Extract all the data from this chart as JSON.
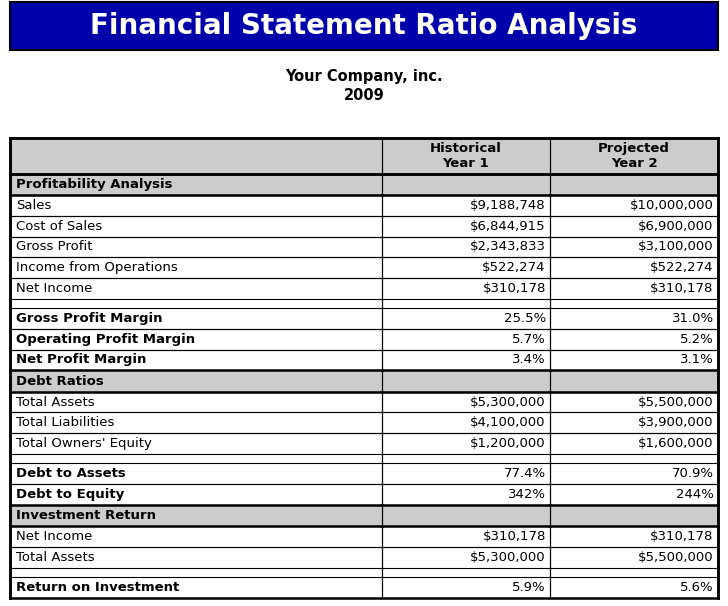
{
  "title": "Financial Statement Ratio Analysis",
  "subtitle1": "Your Company, inc.",
  "subtitle2": "2009",
  "title_bg": "#0000AA",
  "title_color": "#FFFFFF",
  "header_bg": "#CCCCCC",
  "section_bg": "#CCCCCC",
  "col_headers": [
    "",
    "Historical\nYear 1",
    "Projected\nYear 2"
  ],
  "rows": [
    {
      "type": "section",
      "label": "Profitability Analysis",
      "v1": "",
      "v2": ""
    },
    {
      "type": "data",
      "label": "Sales",
      "v1": "$9,188,748",
      "v2": "$10,000,000"
    },
    {
      "type": "data",
      "label": "Cost of Sales",
      "v1": "$6,844,915",
      "v2": "$6,900,000"
    },
    {
      "type": "data",
      "label": "Gross Profit",
      "v1": "$2,343,833",
      "v2": "$3,100,000"
    },
    {
      "type": "data",
      "label": "Income from Operations",
      "v1": "$522,274",
      "v2": "$522,274"
    },
    {
      "type": "data",
      "label": "Net Income",
      "v1": "$310,178",
      "v2": "$310,178"
    },
    {
      "type": "empty",
      "label": "",
      "v1": "",
      "v2": ""
    },
    {
      "type": "bold",
      "label": "Gross Profit Margin",
      "v1": "25.5%",
      "v2": "31.0%"
    },
    {
      "type": "bold",
      "label": "Operating Profit Margin",
      "v1": "5.7%",
      "v2": "5.2%"
    },
    {
      "type": "bold",
      "label": "Net Profit Margin",
      "v1": "3.4%",
      "v2": "3.1%"
    },
    {
      "type": "section",
      "label": "Debt Ratios",
      "v1": "",
      "v2": ""
    },
    {
      "type": "data",
      "label": "Total Assets",
      "v1": "$5,300,000",
      "v2": "$5,500,000"
    },
    {
      "type": "data",
      "label": "Total Liabilities",
      "v1": "$4,100,000",
      "v2": "$3,900,000"
    },
    {
      "type": "data",
      "label": "Total Owners' Equity",
      "v1": "$1,200,000",
      "v2": "$1,600,000"
    },
    {
      "type": "empty",
      "label": "",
      "v1": "",
      "v2": ""
    },
    {
      "type": "bold",
      "label": "Debt to Assets",
      "v1": "77.4%",
      "v2": "70.9%"
    },
    {
      "type": "bold",
      "label": "Debt to Equity",
      "v1": "342%",
      "v2": "244%"
    },
    {
      "type": "section",
      "label": "Investment Return",
      "v1": "",
      "v2": ""
    },
    {
      "type": "data",
      "label": "Net Income",
      "v1": "$310,178",
      "v2": "$310,178"
    },
    {
      "type": "data",
      "label": "Total Assets",
      "v1": "$5,300,000",
      "v2": "$5,500,000"
    },
    {
      "type": "empty",
      "label": "",
      "v1": "",
      "v2": ""
    },
    {
      "type": "bold",
      "label": "Return on Investment",
      "v1": "5.9%",
      "v2": "5.6%"
    }
  ],
  "fig_bg": "#FFFFFF",
  "border_color": "#000000"
}
